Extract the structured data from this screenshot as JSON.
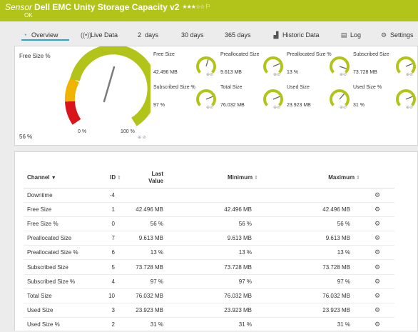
{
  "header": {
    "kind": "Sensor",
    "title": "Dell EMC Unity Storage Capacity v2",
    "stars": "★★★☆☆",
    "flag_icon": "flag-icon",
    "status": "OK",
    "bg_color": "#b2c41a"
  },
  "tabs": [
    {
      "label": "Overview",
      "icon": "gauge-icon",
      "active": true
    },
    {
      "label": "Live Data",
      "icon": "pulse-icon"
    },
    {
      "label": "2  days"
    },
    {
      "label": "30 days"
    },
    {
      "label": "365 days"
    },
    {
      "label": "Historic Data",
      "icon": "chart-icon"
    },
    {
      "label": "Log",
      "icon": "log-icon"
    },
    {
      "label": "Settings",
      "icon": "gear-icon"
    }
  ],
  "primary_gauge": {
    "label": "Free Size %",
    "value": "56 %",
    "min_label": "0 %",
    "max_label": "100 %",
    "fraction": 0.56
  },
  "small_gauges": [
    {
      "label": "Free Size",
      "value": "42.496 MB",
      "fraction": 0.56
    },
    {
      "label": "Preallocated Size",
      "value": "9.613 MB",
      "fraction": 0.75
    },
    {
      "label": "Preallocated Size %",
      "value": "13 %",
      "fraction": 0.9
    },
    {
      "label": "Subscribed Size",
      "value": "73.728 MB",
      "fraction": 0.75
    },
    {
      "label": "Subscribed Size %",
      "value": "97 %",
      "fraction": 0.75
    },
    {
      "label": "Total Size",
      "value": "76.032 MB",
      "fraction": 0.75
    },
    {
      "label": "Used Size",
      "value": "23.923 MB",
      "fraction": 0.65
    },
    {
      "label": "Used Size %",
      "value": "31 %",
      "fraction": 0.75
    }
  ],
  "table": {
    "headers": {
      "channel": "Channel",
      "id": "ID",
      "last": "Last Value",
      "minimum": "Minimum",
      "maximum": "Maximum"
    },
    "rows": [
      {
        "channel": "Downtime",
        "id": "-4",
        "last": "",
        "min": "",
        "max": ""
      },
      {
        "channel": "Free Size",
        "id": "1",
        "last": "42.496 MB",
        "min": "42.496 MB",
        "max": "42.496 MB"
      },
      {
        "channel": "Free Size %",
        "id": "0",
        "last": "56 %",
        "min": "56 %",
        "max": "56 %"
      },
      {
        "channel": "Preallocated Size",
        "id": "7",
        "last": "9.613 MB",
        "min": "9.613 MB",
        "max": "9.613 MB"
      },
      {
        "channel": "Preallocated Size %",
        "id": "6",
        "last": "13 %",
        "min": "13 %",
        "max": "13 %"
      },
      {
        "channel": "Subscribed Size",
        "id": "5",
        "last": "73.728 MB",
        "min": "73.728 MB",
        "max": "73.728 MB"
      },
      {
        "channel": "Subscribed Size %",
        "id": "4",
        "last": "97 %",
        "min": "97 %",
        "max": "97 %"
      },
      {
        "channel": "Total Size",
        "id": "10",
        "last": "76.032 MB",
        "min": "76.032 MB",
        "max": "76.032 MB"
      },
      {
        "channel": "Used Size",
        "id": "3",
        "last": "23.923 MB",
        "min": "23.923 MB",
        "max": "23.923 MB"
      },
      {
        "channel": "Used Size %",
        "id": "2",
        "last": "31 %",
        "min": "31 %",
        "max": "31 %"
      }
    ]
  }
}
